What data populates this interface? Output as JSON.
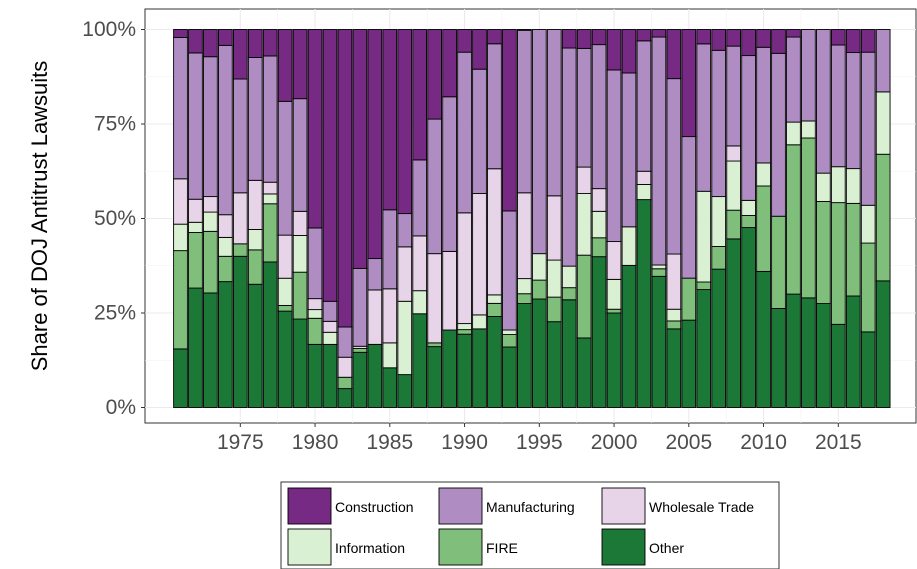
{
  "chart_data": {
    "type": "bar",
    "stacked": "percent",
    "xlabel": "",
    "ylabel": "Share of DOJ Antitrust Lawsuits",
    "ylim": [
      0,
      100
    ],
    "xlim": [
      1969.5,
      2020.5
    ],
    "x_ticks": [
      1975,
      1980,
      1985,
      1990,
      1995,
      2000,
      2005,
      2010,
      2015
    ],
    "x_tick_labels": [
      "1975",
      "1980",
      "1985",
      "1990",
      "1995",
      "2000",
      "2005",
      "2010",
      "2015"
    ],
    "y_ticks": [
      0,
      25,
      50,
      75,
      100
    ],
    "y_tick_labels": [
      "0%",
      "25%",
      "50%",
      "75%",
      "100%"
    ],
    "grid": true,
    "legend_position": "bottom",
    "x": [
      1971,
      1972,
      1973,
      1974,
      1975,
      1976,
      1977,
      1978,
      1979,
      1980,
      1981,
      1982,
      1983,
      1984,
      1985,
      1986,
      1987,
      1988,
      1989,
      1990,
      1991,
      1992,
      1993,
      1994,
      1995,
      1996,
      1997,
      1998,
      1999,
      2000,
      2001,
      2002,
      2003,
      2004,
      2005,
      2006,
      2007,
      2008,
      2009,
      2010,
      2011,
      2012,
      2013,
      2014,
      2015,
      2016,
      2017,
      2018
    ],
    "series": [
      {
        "name": "Other",
        "color": "#1b7837",
        "values": [
          15.5,
          31.6,
          30.3,
          33.3,
          40.0,
          32.6,
          38.5,
          25.5,
          23.4,
          16.7,
          16.7,
          5.0,
          14.6,
          16.7,
          10.5,
          8.7,
          24.8,
          16.1,
          20.5,
          19.4,
          20.8,
          23.6,
          16.0,
          27.5,
          28.7,
          22.7,
          28.5,
          18.4,
          39.9,
          25.0,
          37.6,
          55.0,
          34.7,
          20.8,
          20.8,
          31.2,
          36.6,
          44.6,
          47.6,
          36.0,
          26.2,
          30.0,
          29.0,
          27.5,
          22.0,
          29.5,
          20.0,
          33.5
        ]
      },
      {
        "name": "FIRE",
        "color": "#7fbf7b",
        "values": [
          26.0,
          14.7,
          16.3,
          6.7,
          3.3,
          9.1,
          15.4,
          1.5,
          12.4,
          6.9,
          0.0,
          3.0,
          1.0,
          0.0,
          0.0,
          0.0,
          0.0,
          1.0,
          0.0,
          1.2,
          0.0,
          3.4,
          3.3,
          2.6,
          5.0,
          6.5,
          3.2,
          21.9,
          5.0,
          1.0,
          0.0,
          0.0,
          2.0,
          2.1,
          10.0,
          2.0,
          6.0,
          7.6,
          3.2,
          22.6,
          24.4,
          39.5,
          42.3,
          27.0,
          32.2,
          24.5,
          23.5,
          33.5
        ]
      },
      {
        "name": "Information",
        "color": "#d9f0d3",
        "values": [
          7.0,
          2.7,
          5.1,
          5.0,
          0.0,
          5.4,
          2.6,
          7.2,
          9.7,
          2.3,
          3.2,
          0.0,
          0.0,
          0.0,
          6.6,
          19.4,
          6.1,
          0.0,
          0.0,
          1.6,
          3.7,
          2.2,
          1.2,
          4.0,
          7.0,
          9.8,
          5.7,
          16.3,
          7.0,
          7.9,
          10.2,
          4.0,
          1.0,
          3.1,
          0.0,
          24.0,
          13.2,
          13.0,
          4.0,
          6.1,
          0.0,
          6.0,
          4.5,
          7.5,
          9.5,
          9.2,
          10.0,
          16.5
        ]
      },
      {
        "name": "Wholesale Trade",
        "color": "#e7d4e8",
        "values": [
          12.0,
          6.1,
          4.1,
          6.0,
          13.5,
          13.0,
          3.1,
          11.4,
          6.4,
          2.9,
          2.9,
          5.3,
          0.6,
          14.4,
          14.3,
          14.4,
          14.5,
          23.6,
          20.8,
          29.3,
          32.1,
          32.7,
          0.0,
          22.7,
          0.0,
          17.0,
          0.0,
          7.0,
          6.0,
          10.0,
          0.0,
          3.5,
          0.0,
          14.6,
          0.0,
          0.0,
          0.0,
          4.0,
          0.0,
          0.0,
          0.0,
          0.0,
          0.0,
          0.0,
          0.0,
          0.0,
          0.0,
          0.0
        ]
      },
      {
        "name": "Manufacturing",
        "color": "#af8dc3",
        "values": [
          37.4,
          38.7,
          37.0,
          44.8,
          30.1,
          32.5,
          33.4,
          35.4,
          29.8,
          18.7,
          5.3,
          8.0,
          20.6,
          8.3,
          20.9,
          8.8,
          20.1,
          35.6,
          40.9,
          42.5,
          32.9,
          32.4,
          31.5,
          43.0,
          59.3,
          44.0,
          57.7,
          31.4,
          38.1,
          45.4,
          40.7,
          34.5,
          60.3,
          46.4,
          33.7,
          39.0,
          38.7,
          26.4,
          38.3,
          30.6,
          43.1,
          22.5,
          24.2,
          38.0,
          32.2,
          30.7,
          40.5,
          16.5
        ]
      },
      {
        "name": "Construction",
        "color": "#762a83",
        "values": [
          2.1,
          6.2,
          7.2,
          4.2,
          13.1,
          7.4,
          7.0,
          19.0,
          18.3,
          52.5,
          71.9,
          78.7,
          63.2,
          60.6,
          47.7,
          48.7,
          34.5,
          23.7,
          17.8,
          6.0,
          10.5,
          3.7,
          48.0,
          0.2,
          0.0,
          0.0,
          4.9,
          5.0,
          4.0,
          10.7,
          11.5,
          3.0,
          2.0,
          13.0,
          25.5,
          3.8,
          5.5,
          4.4,
          6.9,
          4.7,
          6.3,
          2.0,
          0.0,
          0.0,
          4.1,
          6.1,
          6.0,
          0.0
        ]
      }
    ]
  },
  "legend": {
    "items": [
      {
        "label": "Construction",
        "color": "#762a83"
      },
      {
        "label": "Manufacturing",
        "color": "#af8dc3"
      },
      {
        "label": "Wholesale Trade",
        "color": "#e7d4e8"
      },
      {
        "label": "Information",
        "color": "#d9f0d3"
      },
      {
        "label": "FIRE",
        "color": "#7fbf7b"
      },
      {
        "label": "Other",
        "color": "#1b7837"
      }
    ]
  }
}
